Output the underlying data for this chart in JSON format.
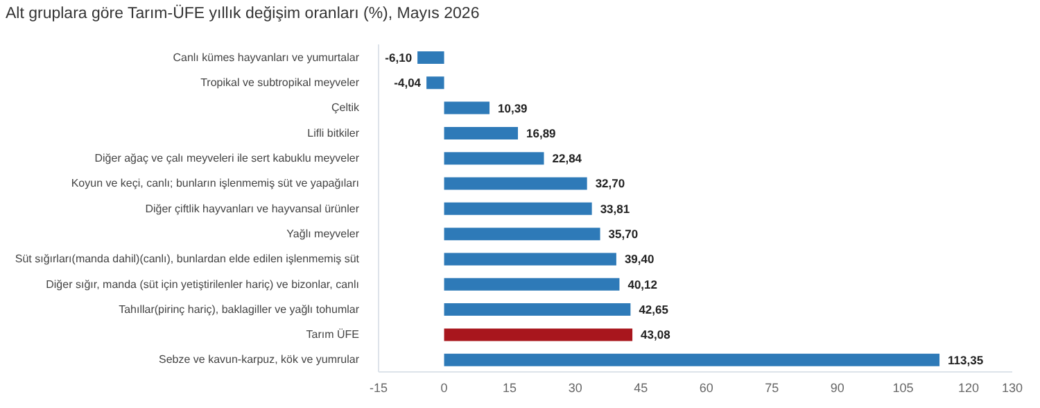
{
  "chart_data": {
    "type": "bar",
    "orientation": "horizontal",
    "title": "Alt gruplara göre Tarım-ÜFE yıllık değişim oranları (%), Mayıs 2026",
    "categories": [
      "Canlı kümes hayvanları ve yumurtalar",
      "Tropikal ve subtropikal meyveler",
      "Çeltik",
      "Lifli bitkiler",
      "Diğer ağaç ve çalı meyveleri ile sert kabuklu meyveler",
      "Koyun ve keçi, canlı; bunların işlenmemiş süt ve yapağıları",
      "Diğer çiftlik hayvanları ve hayvansal ürünler",
      "Yağlı meyveler",
      "Süt sığırları(manda dahil)(canlı), bunlardan elde edilen işlenmemiş süt",
      "Diğer sığır, manda (süt için yetiştirilenler hariç) ve bizonlar, canlı",
      "Tahıllar(pirinç hariç), baklagiller ve yağlı tohumlar",
      "Tarım ÜFE",
      "Sebze ve kavun-karpuz, kök ve yumrular"
    ],
    "values": [
      -6.1,
      -4.04,
      10.39,
      16.89,
      22.84,
      32.7,
      33.81,
      35.7,
      39.4,
      40.12,
      42.65,
      43.08,
      113.35
    ],
    "value_labels": [
      "-6,10",
      "-4,04",
      "10,39",
      "16,89",
      "22,84",
      "32,70",
      "33,81",
      "35,70",
      "39,40",
      "40,12",
      "42,65",
      "43,08",
      "113,35"
    ],
    "colors": [
      "#2e7ab8",
      "#2e7ab8",
      "#2e7ab8",
      "#2e7ab8",
      "#2e7ab8",
      "#2e7ab8",
      "#2e7ab8",
      "#2e7ab8",
      "#2e7ab8",
      "#2e7ab8",
      "#2e7ab8",
      "#a8161d",
      "#2e7ab8"
    ],
    "xlim": [
      -15,
      130
    ],
    "xticks": [
      -15,
      0,
      15,
      30,
      45,
      60,
      75,
      90,
      105,
      120,
      130
    ],
    "grid": false
  }
}
